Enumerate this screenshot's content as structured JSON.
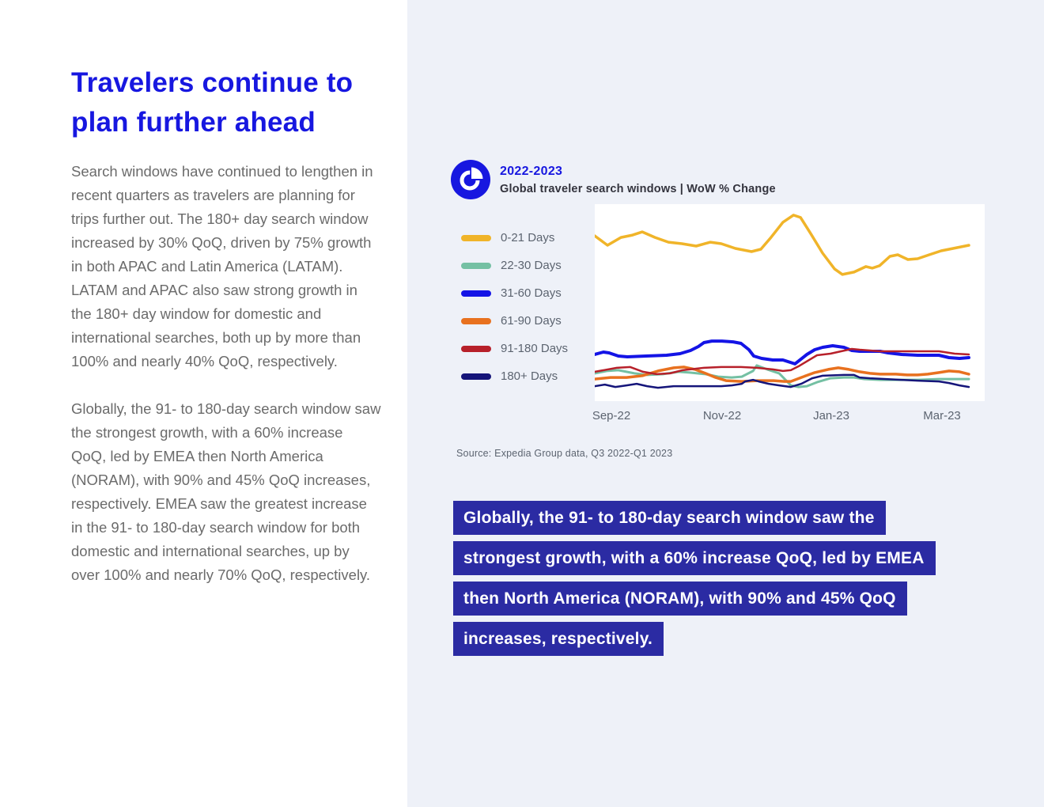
{
  "page": {
    "colors": {
      "accent": "#1717E0",
      "quote_background": "#2B2BA3",
      "right_panel_background": "#EEF1F8",
      "body_text": "#6B6B6B",
      "muted_text": "#5C6470",
      "dark_text": "#33333D"
    },
    "left": {
      "title": "Travelers continue to plan further ahead",
      "paragraph1": "Search windows have continued to lengthen in recent quarters as travelers are planning for trips further out. The 180+ day search window increased by 30% QoQ, driven by 75% growth in both APAC and Latin America (LATAM). LATAM and APAC also saw strong growth in the 180+ day window for domestic and international searches, both up by more than 100% and nearly 40% QoQ, respectively.",
      "paragraph2": "Globally, the 91- to 180-day search window saw the strongest growth, with a 60% increase QoQ, led by EMEA then North America (NORAM), with 90% and 45% QoQ increases, respectively. EMEA saw the greatest increase in the 91- to 180-day search window for both domestic and international searches, up by over 100% and nearly 70% QoQ, respectively."
    },
    "right": {
      "chart_header": {
        "period": "2022-2023",
        "title": "Global traveler search windows | WoW % Change",
        "icon": "pie-chart-icon"
      },
      "source": "Source: Expedia Group data, Q3 2022-Q1 2023",
      "highlight_quote": {
        "line1": "Globally, the 91- to 180-day search window saw the",
        "line2": "strongest growth, with a 60% increase QoQ, led by EMEA",
        "line3": "then North America (NORAM), with 90% and 45% QoQ",
        "line4": "increases, respectively."
      }
    }
  },
  "chart_data": {
    "type": "line",
    "title": "Global traveler search windows | WoW % Change",
    "subtitle": "2022-2023",
    "xlabel": "",
    "ylabel": "",
    "x_axis_labels": [
      "Sep-22",
      "Nov-22",
      "Jan-23",
      "Mar-23"
    ],
    "y_axis_note": "no visible ticks; values are relative index 0-100 of plot height (WoW % change)",
    "grid": false,
    "legend_position": "left",
    "series": [
      {
        "name": "0-21 Days",
        "color": "#F0B429",
        "width": 3.5,
        "points": [
          [
            0,
            83.9
          ],
          [
            3.4,
            79.1
          ],
          [
            7,
            83.1
          ],
          [
            10.1,
            84.3
          ],
          [
            12.7,
            85.9
          ],
          [
            16.1,
            83.1
          ],
          [
            19.7,
            80.7
          ],
          [
            23.3,
            79.9
          ],
          [
            27.1,
            78.7
          ],
          [
            30.9,
            80.7
          ],
          [
            33.8,
            79.9
          ],
          [
            37.6,
            77.5
          ],
          [
            41.9,
            75.9
          ],
          [
            44.4,
            77.1
          ],
          [
            47.1,
            83.1
          ],
          [
            50.3,
            90.8
          ],
          [
            53.1,
            94.4
          ],
          [
            55,
            93.2
          ],
          [
            57.7,
            85.1
          ],
          [
            60.9,
            75.1
          ],
          [
            64.1,
            67.1
          ],
          [
            66.2,
            64.3
          ],
          [
            69.3,
            65.5
          ],
          [
            72.5,
            68.3
          ],
          [
            74.2,
            67.5
          ],
          [
            76.1,
            68.7
          ],
          [
            78.9,
            73.5
          ],
          [
            81,
            74.3
          ],
          [
            83.7,
            71.9
          ],
          [
            86.3,
            72.3
          ],
          [
            89.4,
            74.3
          ],
          [
            92.6,
            76.3
          ],
          [
            95.8,
            77.5
          ],
          [
            100,
            79.1
          ]
        ]
      },
      {
        "name": "22-30 Days",
        "color": "#74C0A3",
        "width": 3,
        "points": [
          [
            0,
            14.1
          ],
          [
            3.2,
            15.3
          ],
          [
            6.3,
            15.7
          ],
          [
            10.6,
            14.1
          ],
          [
            14,
            13.3
          ],
          [
            18.2,
            13.7
          ],
          [
            22.4,
            14.9
          ],
          [
            25.4,
            14.5
          ],
          [
            29.6,
            13.7
          ],
          [
            33,
            12.4
          ],
          [
            36.6,
            12
          ],
          [
            39.3,
            12.4
          ],
          [
            42.3,
            15.3
          ],
          [
            43.3,
            18.1
          ],
          [
            46.1,
            16.1
          ],
          [
            49.3,
            14.1
          ],
          [
            52.4,
            8
          ],
          [
            54.5,
            7.2
          ],
          [
            56.7,
            7.6
          ],
          [
            59.4,
            9.6
          ],
          [
            63,
            11.6
          ],
          [
            66.6,
            12
          ],
          [
            69.3,
            12
          ],
          [
            72.1,
            11.2
          ],
          [
            76.3,
            10.8
          ],
          [
            82,
            10.8
          ],
          [
            86.3,
            10.8
          ],
          [
            92,
            11.2
          ],
          [
            96.2,
            11.2
          ],
          [
            100,
            11.2
          ]
        ]
      },
      {
        "name": "31-60 Days",
        "color": "#1414E6",
        "width": 4,
        "points": [
          [
            0,
            23.7
          ],
          [
            2.3,
            24.9
          ],
          [
            3.8,
            24.5
          ],
          [
            6.3,
            22.9
          ],
          [
            8.7,
            22.5
          ],
          [
            13.7,
            22.9
          ],
          [
            19.2,
            23.3
          ],
          [
            22.8,
            24.1
          ],
          [
            25.6,
            25.7
          ],
          [
            27.7,
            27.7
          ],
          [
            29.2,
            29.7
          ],
          [
            31.3,
            30.5
          ],
          [
            34,
            30.5
          ],
          [
            37,
            30.1
          ],
          [
            39.1,
            29.3
          ],
          [
            41.2,
            26.1
          ],
          [
            42.5,
            22.9
          ],
          [
            44.6,
            21.7
          ],
          [
            47.6,
            20.9
          ],
          [
            50.3,
            20.9
          ],
          [
            53.5,
            18.9
          ],
          [
            56.7,
            23.7
          ],
          [
            58.8,
            26.1
          ],
          [
            60.9,
            27.3
          ],
          [
            63.6,
            28.1
          ],
          [
            66.6,
            27.3
          ],
          [
            68.7,
            25.7
          ],
          [
            70.8,
            25.3
          ],
          [
            73.6,
            25.3
          ],
          [
            76.3,
            25.3
          ],
          [
            78.4,
            24.5
          ],
          [
            82,
            23.7
          ],
          [
            86.3,
            23.3
          ],
          [
            92,
            23.3
          ],
          [
            94.7,
            22.1
          ],
          [
            97.5,
            21.7
          ],
          [
            100,
            22.1
          ]
        ]
      },
      {
        "name": "61-90 Days",
        "color": "#E8711F",
        "width": 3.5,
        "points": [
          [
            0,
            11.2
          ],
          [
            4.2,
            12
          ],
          [
            8.5,
            12
          ],
          [
            12.7,
            12.9
          ],
          [
            16.9,
            15.3
          ],
          [
            21.1,
            16.9
          ],
          [
            23.9,
            17.3
          ],
          [
            26.8,
            16.1
          ],
          [
            29.6,
            14.1
          ],
          [
            32.3,
            12
          ],
          [
            35.1,
            10.4
          ],
          [
            39.3,
            10
          ],
          [
            43.6,
            10.4
          ],
          [
            47.8,
            10.4
          ],
          [
            50.7,
            10
          ],
          [
            52.4,
            10
          ],
          [
            55.2,
            12
          ],
          [
            58.8,
            14.5
          ],
          [
            62.4,
            16.1
          ],
          [
            65.1,
            16.9
          ],
          [
            67.9,
            16.1
          ],
          [
            70.8,
            14.9
          ],
          [
            73.6,
            14.1
          ],
          [
            76.3,
            13.7
          ],
          [
            80.5,
            13.7
          ],
          [
            83.5,
            13.3
          ],
          [
            86.3,
            13.3
          ],
          [
            89,
            13.7
          ],
          [
            92,
            14.5
          ],
          [
            94.7,
            15.3
          ],
          [
            97.5,
            14.9
          ],
          [
            100,
            13.7
          ]
        ]
      },
      {
        "name": "91-180 Days",
        "color": "#B7202A",
        "width": 2.5,
        "points": [
          [
            0,
            14.9
          ],
          [
            5.9,
            16.9
          ],
          [
            9.5,
            17.3
          ],
          [
            12.9,
            14.9
          ],
          [
            16.5,
            13.7
          ],
          [
            20.1,
            14.1
          ],
          [
            23.5,
            15.7
          ],
          [
            29.2,
            16.9
          ],
          [
            33.8,
            17.3
          ],
          [
            39.1,
            17.3
          ],
          [
            43.3,
            16.9
          ],
          [
            47.6,
            16.1
          ],
          [
            50.3,
            15.3
          ],
          [
            52.4,
            15.7
          ],
          [
            54.5,
            17.7
          ],
          [
            59.4,
            23.3
          ],
          [
            63,
            24.1
          ],
          [
            68.7,
            26.5
          ],
          [
            70.8,
            26.1
          ],
          [
            73.6,
            25.7
          ],
          [
            76.3,
            25.3
          ],
          [
            80.5,
            25.3
          ],
          [
            86.3,
            25.3
          ],
          [
            92,
            25.3
          ],
          [
            96.2,
            24.1
          ],
          [
            100,
            23.7
          ]
        ]
      },
      {
        "name": "180+ Days",
        "color": "#15157A",
        "width": 2.5,
        "points": [
          [
            0,
            7.6
          ],
          [
            2.7,
            8.4
          ],
          [
            5.5,
            7.2
          ],
          [
            8.5,
            8
          ],
          [
            11.2,
            8.8
          ],
          [
            14,
            7.6
          ],
          [
            16.9,
            6.8
          ],
          [
            21.1,
            7.6
          ],
          [
            28.1,
            7.6
          ],
          [
            33.8,
            7.6
          ],
          [
            36.6,
            8
          ],
          [
            39.3,
            8.8
          ],
          [
            40.2,
            10
          ],
          [
            42.3,
            10.8
          ],
          [
            43.8,
            10
          ],
          [
            46.5,
            8.8
          ],
          [
            49.3,
            8
          ],
          [
            52.4,
            7.2
          ],
          [
            55.2,
            8.8
          ],
          [
            58.1,
            11.6
          ],
          [
            60.9,
            12.9
          ],
          [
            66.6,
            13.3
          ],
          [
            69.3,
            13.3
          ],
          [
            70.8,
            12
          ],
          [
            73.6,
            11.6
          ],
          [
            77.8,
            11.2
          ],
          [
            82,
            10.8
          ],
          [
            86.3,
            10.4
          ],
          [
            92,
            10
          ],
          [
            94.7,
            9.2
          ],
          [
            97.5,
            8
          ],
          [
            100,
            7.2
          ]
        ]
      }
    ]
  }
}
